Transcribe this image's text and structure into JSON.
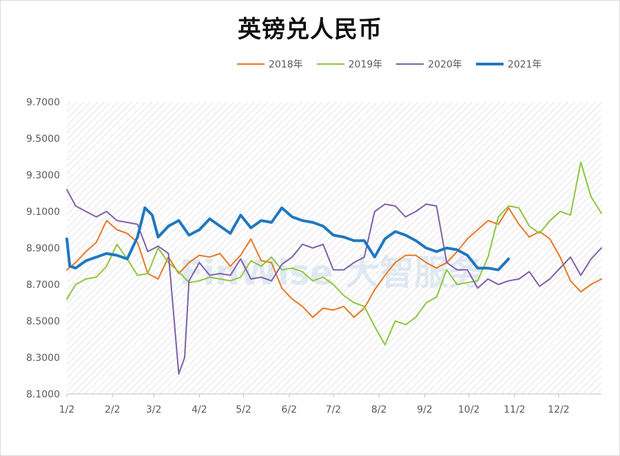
{
  "chart_data": {
    "type": "line",
    "title": "英镑兑人民币",
    "xlabel": "",
    "ylabel": "",
    "ylim": [
      8.1,
      9.7
    ],
    "yticks": [
      "9.7000",
      "9.5000",
      "9.3000",
      "9.1000",
      "8.9000",
      "8.7000",
      "8.5000",
      "8.3000",
      "8.1000"
    ],
    "x_tick_labels": [
      "1/2",
      "2/2",
      "3/2",
      "4/2",
      "5/2",
      "6/2",
      "7/2",
      "8/2",
      "9/2",
      "10/2",
      "11/2",
      "12/2"
    ],
    "x_domain": [
      "1/2",
      "12/31"
    ],
    "watermark": "FinWise 大智服务",
    "legend_position": "top",
    "grid": false,
    "series": [
      {
        "name": "2018年",
        "color": "#E87722",
        "points": [
          [
            "1/2",
            8.78
          ],
          [
            "1/8",
            8.82
          ],
          [
            "1/15",
            8.88
          ],
          [
            "1/22",
            8.93
          ],
          [
            "1/29",
            9.05
          ],
          [
            "2/5",
            9.0
          ],
          [
            "2/12",
            8.98
          ],
          [
            "2/19",
            8.93
          ],
          [
            "2/26",
            8.76
          ],
          [
            "3/5",
            8.73
          ],
          [
            "3/12",
            8.85
          ],
          [
            "3/19",
            8.76
          ],
          [
            "3/26",
            8.82
          ],
          [
            "4/2",
            8.86
          ],
          [
            "4/9",
            8.85
          ],
          [
            "4/16",
            8.87
          ],
          [
            "4/23",
            8.8
          ],
          [
            "4/30",
            8.86
          ],
          [
            "5/7",
            8.95
          ],
          [
            "5/14",
            8.83
          ],
          [
            "5/21",
            8.82
          ],
          [
            "5/28",
            8.68
          ],
          [
            "6/4",
            8.62
          ],
          [
            "6/11",
            8.58
          ],
          [
            "6/18",
            8.52
          ],
          [
            "6/25",
            8.57
          ],
          [
            "7/2",
            8.56
          ],
          [
            "7/9",
            8.58
          ],
          [
            "7/16",
            8.52
          ],
          [
            "7/23",
            8.57
          ],
          [
            "7/30",
            8.67
          ],
          [
            "8/6",
            8.75
          ],
          [
            "8/13",
            8.82
          ],
          [
            "8/20",
            8.86
          ],
          [
            "8/27",
            8.86
          ],
          [
            "9/3",
            8.82
          ],
          [
            "9/10",
            8.79
          ],
          [
            "9/17",
            8.82
          ],
          [
            "9/24",
            8.88
          ],
          [
            "10/1",
            8.95
          ],
          [
            "10/8",
            9.0
          ],
          [
            "10/15",
            9.05
          ],
          [
            "10/22",
            9.03
          ],
          [
            "10/29",
            9.12
          ],
          [
            "11/5",
            9.03
          ],
          [
            "11/12",
            8.96
          ],
          [
            "11/19",
            8.99
          ],
          [
            "11/26",
            8.95
          ],
          [
            "12/3",
            8.85
          ],
          [
            "12/10",
            8.72
          ],
          [
            "12/17",
            8.66
          ],
          [
            "12/24",
            8.7
          ],
          [
            "12/31",
            8.73
          ]
        ]
      },
      {
        "name": "2019年",
        "color": "#8CC63F",
        "points": [
          [
            "1/2",
            8.62
          ],
          [
            "1/8",
            8.7
          ],
          [
            "1/15",
            8.73
          ],
          [
            "1/22",
            8.74
          ],
          [
            "1/29",
            8.8
          ],
          [
            "2/5",
            8.92
          ],
          [
            "2/12",
            8.84
          ],
          [
            "2/19",
            8.75
          ],
          [
            "2/26",
            8.76
          ],
          [
            "3/5",
            8.9
          ],
          [
            "3/12",
            8.82
          ],
          [
            "3/19",
            8.77
          ],
          [
            "3/26",
            8.71
          ],
          [
            "4/2",
            8.72
          ],
          [
            "4/9",
            8.74
          ],
          [
            "4/16",
            8.73
          ],
          [
            "4/23",
            8.72
          ],
          [
            "4/30",
            8.74
          ],
          [
            "5/7",
            8.83
          ],
          [
            "5/14",
            8.8
          ],
          [
            "5/21",
            8.85
          ],
          [
            "5/28",
            8.78
          ],
          [
            "6/4",
            8.79
          ],
          [
            "6/11",
            8.77
          ],
          [
            "6/18",
            8.72
          ],
          [
            "6/25",
            8.74
          ],
          [
            "7/2",
            8.7
          ],
          [
            "7/9",
            8.64
          ],
          [
            "7/16",
            8.6
          ],
          [
            "7/23",
            8.58
          ],
          [
            "7/30",
            8.47
          ],
          [
            "8/6",
            8.37
          ],
          [
            "8/13",
            8.5
          ],
          [
            "8/20",
            8.48
          ],
          [
            "8/27",
            8.52
          ],
          [
            "9/3",
            8.6
          ],
          [
            "9/10",
            8.63
          ],
          [
            "9/17",
            8.78
          ],
          [
            "9/24",
            8.7
          ],
          [
            "10/1",
            8.71
          ],
          [
            "10/8",
            8.72
          ],
          [
            "10/15",
            8.85
          ],
          [
            "10/22",
            9.07
          ],
          [
            "10/29",
            9.13
          ],
          [
            "11/5",
            9.12
          ],
          [
            "11/12",
            9.02
          ],
          [
            "11/19",
            8.98
          ],
          [
            "11/26",
            9.05
          ],
          [
            "12/3",
            9.1
          ],
          [
            "12/10",
            9.08
          ],
          [
            "12/17",
            9.37
          ],
          [
            "12/24",
            9.18
          ],
          [
            "12/31",
            9.09
          ]
        ]
      },
      {
        "name": "2020年",
        "color": "#7F5FA8",
        "points": [
          [
            "1/2",
            9.22
          ],
          [
            "1/8",
            9.13
          ],
          [
            "1/15",
            9.1
          ],
          [
            "1/22",
            9.07
          ],
          [
            "1/29",
            9.1
          ],
          [
            "2/5",
            9.05
          ],
          [
            "2/12",
            9.04
          ],
          [
            "2/19",
            9.03
          ],
          [
            "2/26",
            8.88
          ],
          [
            "3/5",
            8.91
          ],
          [
            "3/12",
            8.87
          ],
          [
            "3/19",
            8.21
          ],
          [
            "3/23",
            8.3
          ],
          [
            "3/26",
            8.72
          ],
          [
            "4/2",
            8.82
          ],
          [
            "4/9",
            8.75
          ],
          [
            "4/16",
            8.76
          ],
          [
            "4/23",
            8.75
          ],
          [
            "4/30",
            8.84
          ],
          [
            "5/7",
            8.73
          ],
          [
            "5/14",
            8.74
          ],
          [
            "5/21",
            8.72
          ],
          [
            "5/28",
            8.81
          ],
          [
            "6/4",
            8.85
          ],
          [
            "6/11",
            8.92
          ],
          [
            "6/18",
            8.9
          ],
          [
            "6/25",
            8.92
          ],
          [
            "7/2",
            8.78
          ],
          [
            "7/9",
            8.78
          ],
          [
            "7/16",
            8.82
          ],
          [
            "7/23",
            8.85
          ],
          [
            "7/30",
            9.1
          ],
          [
            "8/6",
            9.14
          ],
          [
            "8/13",
            9.13
          ],
          [
            "8/20",
            9.07
          ],
          [
            "8/27",
            9.1
          ],
          [
            "9/3",
            9.14
          ],
          [
            "9/10",
            9.13
          ],
          [
            "9/17",
            8.82
          ],
          [
            "9/24",
            8.78
          ],
          [
            "10/1",
            8.78
          ],
          [
            "10/8",
            8.68
          ],
          [
            "10/15",
            8.73
          ],
          [
            "10/22",
            8.7
          ],
          [
            "10/29",
            8.72
          ],
          [
            "11/5",
            8.73
          ],
          [
            "11/12",
            8.77
          ],
          [
            "11/19",
            8.69
          ],
          [
            "11/26",
            8.73
          ],
          [
            "12/3",
            8.79
          ],
          [
            "12/10",
            8.85
          ],
          [
            "12/17",
            8.75
          ],
          [
            "12/24",
            8.84
          ],
          [
            "12/31",
            8.9
          ]
        ]
      },
      {
        "name": "2021年",
        "color": "#1F77C0",
        "points": [
          [
            "1/2",
            8.95
          ],
          [
            "1/4",
            8.8
          ],
          [
            "1/8",
            8.79
          ],
          [
            "1/15",
            8.83
          ],
          [
            "1/22",
            8.85
          ],
          [
            "1/29",
            8.87
          ],
          [
            "2/5",
            8.86
          ],
          [
            "2/12",
            8.84
          ],
          [
            "2/19",
            8.96
          ],
          [
            "2/24",
            9.12
          ],
          [
            "3/1",
            9.08
          ],
          [
            "3/5",
            8.96
          ],
          [
            "3/12",
            9.02
          ],
          [
            "3/19",
            9.05
          ],
          [
            "3/26",
            8.97
          ],
          [
            "4/2",
            9.0
          ],
          [
            "4/9",
            9.06
          ],
          [
            "4/16",
            9.02
          ],
          [
            "4/23",
            8.98
          ],
          [
            "4/30",
            9.08
          ],
          [
            "5/7",
            9.01
          ],
          [
            "5/14",
            9.05
          ],
          [
            "5/21",
            9.04
          ],
          [
            "5/28",
            9.12
          ],
          [
            "6/4",
            9.07
          ],
          [
            "6/11",
            9.05
          ],
          [
            "6/18",
            9.04
          ],
          [
            "6/25",
            9.02
          ],
          [
            "7/2",
            8.97
          ],
          [
            "7/9",
            8.96
          ],
          [
            "7/16",
            8.94
          ],
          [
            "7/23",
            8.94
          ],
          [
            "7/30",
            8.85
          ],
          [
            "8/6",
            8.95
          ],
          [
            "8/13",
            8.99
          ],
          [
            "8/20",
            8.97
          ],
          [
            "8/27",
            8.94
          ],
          [
            "9/3",
            8.9
          ],
          [
            "9/10",
            8.88
          ],
          [
            "9/17",
            8.9
          ],
          [
            "9/24",
            8.89
          ],
          [
            "10/1",
            8.86
          ],
          [
            "10/8",
            8.79
          ],
          [
            "10/15",
            8.79
          ],
          [
            "10/22",
            8.78
          ],
          [
            "10/29",
            8.84
          ]
        ]
      }
    ]
  }
}
